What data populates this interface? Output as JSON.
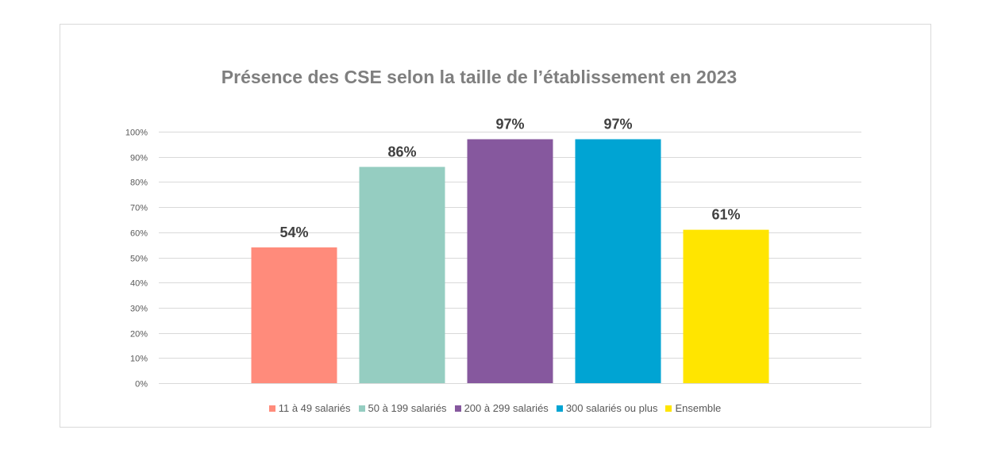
{
  "chart_data": {
    "type": "bar",
    "title": "Présence des CSE selon la taille de l’établissement en 2023",
    "unit": "%",
    "ylim": [
      0,
      100
    ],
    "yticks": [
      0,
      10,
      20,
      30,
      40,
      50,
      60,
      70,
      80,
      90,
      100
    ],
    "grid": true,
    "legend": "bottom",
    "series": [
      {
        "name": "11 à 49 salariés",
        "values": [
          54
        ],
        "color": "#FF8B7B"
      },
      {
        "name": "50 à 199 salariés",
        "values": [
          86
        ],
        "color": "#95CDC1"
      },
      {
        "name": "200 à 299 salariés",
        "values": [
          97
        ],
        "color": "#86589E"
      },
      {
        "name": "300 salariés ou plus",
        "values": [
          97
        ],
        "color": "#00A4D3"
      },
      {
        "name": "Ensemble",
        "values": [
          61
        ],
        "color": "#FFE500"
      }
    ]
  }
}
